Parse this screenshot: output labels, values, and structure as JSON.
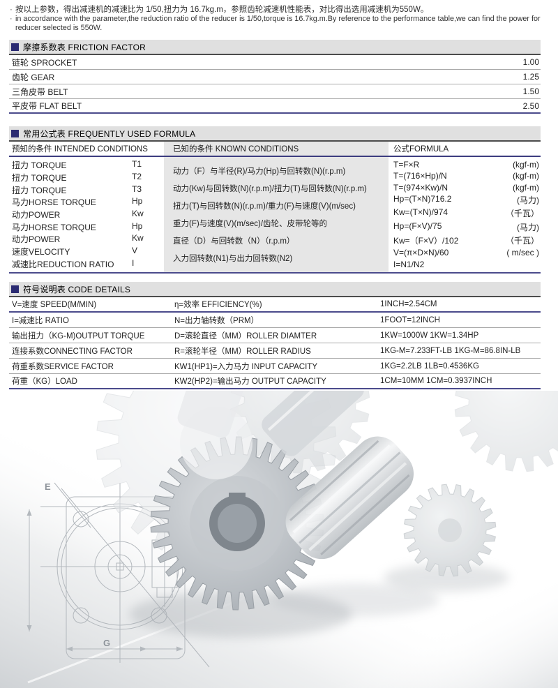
{
  "colors": {
    "accent_navy": "#2b2b72",
    "table_line_navy": "#4b4b8c",
    "bar_gray": "#e0e0e0",
    "column_gray": "#e6e6e6"
  },
  "intro": {
    "bullet": "·",
    "zh": "按以上参数，得出减速机的减速比为 1/50,扭力为 16.7kg.m，参照齿轮减速机性能表，对比得出选用减速机为550W。",
    "en": "in accordance with the parameter,the reduction ratio of the reducer is 1/50,torque is 16.7kg.m.By reference to the performance table,we can find the power for reducer selected is 550W."
  },
  "friction": {
    "title": "摩擦系数表 FRICTION FACTOR",
    "rows": [
      {
        "label": "链轮 SPROCKET",
        "value": "1.00"
      },
      {
        "label": "齿轮 GEAR",
        "value": "1.25"
      },
      {
        "label": "三角皮带 BELT",
        "value": "1.50"
      },
      {
        "label": "平皮带 FLAT BELT",
        "value": "2.50"
      }
    ]
  },
  "formula": {
    "title": "常用公式表 FREQUENTLY USED FORMULA",
    "col_headers": [
      "预知的条件 INTENDED CONDITIONS",
      "已知的条件 KNOWN CONDITIONS",
      "公式FORMULA"
    ],
    "conditions": [
      {
        "name": "扭力 TORQUE",
        "code": "T1"
      },
      {
        "name": "扭力 TORQUE",
        "code": "T2"
      },
      {
        "name": "扭力 TORQUE",
        "code": "T3"
      },
      {
        "name": "马力HORSE TORQUE",
        "code": "Hp"
      },
      {
        "name": "动力POWER",
        "code": "Kw"
      },
      {
        "name": "马力HORSE TORQUE",
        "code": "Hp"
      },
      {
        "name": "动力POWER",
        "code": "Kw"
      },
      {
        "name": "速度VELOCITY",
        "code": "V"
      },
      {
        "name": "减速比REDUCTION RATIO",
        "code": "I"
      }
    ],
    "known": [
      "动力（F）与半径(R)/马力(Hp)与回转数(N)(r.p.m)",
      "动力(Kw)与回转数(N)(r.p.m)/扭力(T)与回转数(N)(r.p.m)",
      "扭力(T)与回转数(N)(r.p.m)/重力(F)与速度(V)(m/sec)",
      "重力(F)与速度(V)(m/sec)/齿轮、皮带轮等的",
      "直径（D）与回转数（N）（r.p.m）",
      "入力回转数(N1)与出力回转数(N2)"
    ],
    "formulas": [
      {
        "expr": "T=F×R",
        "unit": "(kgf-m)"
      },
      {
        "expr": "T=(716×Hp)/N",
        "unit": "(kgf-m)"
      },
      {
        "expr": "T=(974×Kw)/N",
        "unit": "(kgf-m)"
      },
      {
        "expr": "Hp=(T×N)716.2",
        "unit": "(马力)"
      },
      {
        "expr": "Kw=(T×N)/974",
        "unit": "（千瓦）"
      },
      {
        "expr": "Hp=(F×V)/75",
        "unit": "(马力)"
      },
      {
        "expr": "Kw=（F×V）/102",
        "unit": "（千瓦）"
      },
      {
        "expr": "V=(π×D×N)/60",
        "unit": "( m/sec )"
      },
      {
        "expr": "I=N1/N2",
        "unit": ""
      }
    ]
  },
  "codes": {
    "title": "符号说明表 CODE DETAILS",
    "rows": [
      {
        "c1": "V=速度 SPEED(M/MIN)",
        "c2": "η=效率 EFFICIENCY(%)",
        "c3": "1INCH=2.54CM"
      },
      {
        "c1": "I=减速比 RATIO",
        "c2": "N=出力轴转数（PRM）",
        "c3": "1FOOT=12INCH"
      },
      {
        "c1": "输出扭力（KG-M)OUTPUT TORQUE",
        "c2": "D=滚轮直径（MM）ROLLER DIAMTER",
        "c3": "1KW=1000W 1KW=1.34HP"
      },
      {
        "c1": "连接系数CONNECTING FACTOR",
        "c2": "R=滚轮半径（MM）ROLLER  RADIUS",
        "c3": "1KG-M=7.233FT-LB  1KG-M=86.8IN-LB"
      },
      {
        "c1": "荷重系数SERVICE FACTOR",
        "c2": "KW1(HP1)=入力马力 INPUT CAPACITY",
        "c3": "1KG=2.2LB  1LB=0.4536KG"
      },
      {
        "c1": "荷重（KG）LOAD",
        "c2": "KW2(HP2)=输出马力 OUTPUT CAPACITY",
        "c3": "1CM=10MM  1CM=0.3937INCH"
      }
    ]
  },
  "photo": {
    "dim_e": "E",
    "dim_g": "G"
  }
}
